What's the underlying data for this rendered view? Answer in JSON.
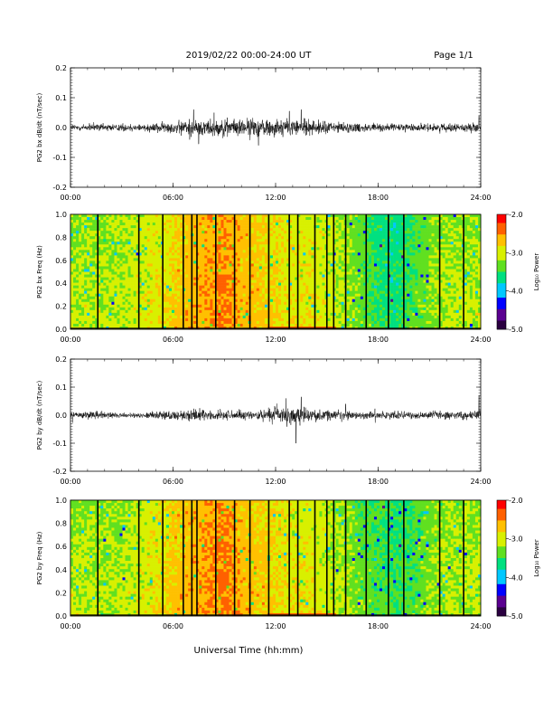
{
  "header": {
    "title": "2019/02/22  00:00-24:00 UT",
    "page": "Page 1/1"
  },
  "footer": {
    "xlabel": "Universal Time (hh:mm)"
  },
  "colors": {
    "trace": "#000000",
    "frame": "#000000",
    "colormap": [
      "#2a0040",
      "#5a0090",
      "#0000ff",
      "#00c8ff",
      "#00e080",
      "#60e020",
      "#d8f000",
      "#ffc000",
      "#ff6000",
      "#ff0000"
    ]
  },
  "chart_data": [
    {
      "type": "line",
      "title": "",
      "ylabel": "PG2 bx dB/dt (nT/sec)",
      "xlim": [
        0,
        24
      ],
      "ylim": [
        -0.2,
        0.2
      ],
      "x_tick_labels": [
        "00:00",
        "06:00",
        "12:00",
        "18:00",
        "24:00"
      ],
      "y_tick_labels": [
        "0.2",
        "0.1",
        "0.0",
        "-0.1",
        "-0.2"
      ],
      "series": [
        {
          "x_hours": [
            0,
            1,
            2,
            3,
            4,
            5,
            6,
            7,
            8,
            9,
            10,
            11,
            12,
            13,
            14,
            15,
            16,
            17,
            18,
            19,
            20,
            21,
            22,
            23,
            24
          ],
          "amplitude": [
            0.02,
            0.02,
            0.02,
            0.02,
            0.02,
            0.025,
            0.03,
            0.045,
            0.045,
            0.04,
            0.045,
            0.05,
            0.045,
            0.045,
            0.04,
            0.035,
            0.025,
            0.025,
            0.02,
            0.02,
            0.02,
            0.02,
            0.02,
            0.02,
            0.02
          ],
          "peaks": [
            [
              7.2,
              0.06
            ],
            [
              7.5,
              -0.055
            ],
            [
              8.4,
              0.05
            ],
            [
              11.0,
              -0.06
            ],
            [
              12.8,
              0.055
            ],
            [
              13.5,
              0.06
            ],
            [
              23.9,
              0.04
            ]
          ]
        }
      ]
    },
    {
      "type": "heatmap",
      "title": "",
      "ylabel": "PG2 bx Freq (Hz)",
      "xlim": [
        0,
        24
      ],
      "ylim": [
        0.0,
        1.0
      ],
      "x_tick_labels": [
        "00:00",
        "06:00",
        "12:00",
        "18:00",
        "24:00"
      ],
      "y_tick_labels": [
        "1.0",
        "0.8",
        "0.6",
        "0.4",
        "0.2",
        "0.0"
      ],
      "colorbar": {
        "label": "Log₁₀ Power",
        "range": [
          -5.0,
          -2.0
        ],
        "tick_labels": [
          "-2.0",
          "-3.0",
          "-4.0",
          "-5.0"
        ]
      },
      "hourly_log_power": [
        -3.1,
        -3.1,
        -3.1,
        -3.1,
        -3.0,
        -2.9,
        -2.8,
        -2.6,
        -2.5,
        -2.4,
        -2.6,
        -2.7,
        -2.8,
        -2.9,
        -2.9,
        -3.0,
        -3.1,
        -3.3,
        -3.5,
        -3.6,
        -3.4,
        -3.2,
        -3.1,
        -3.1,
        -3.1
      ],
      "gap_hours": [
        1.6,
        4.0,
        5.4,
        6.6,
        7.1,
        7.4,
        8.5,
        9.6,
        10.5,
        11.6,
        12.8,
        13.3,
        14.3,
        15.0,
        15.4,
        16.1,
        17.3,
        18.6,
        19.5,
        21.6,
        23.0
      ]
    },
    {
      "type": "line",
      "title": "",
      "ylabel": "PG2 by dB/dt (nT/sec)",
      "xlim": [
        0,
        24
      ],
      "ylim": [
        -0.2,
        0.2
      ],
      "x_tick_labels": [
        "00:00",
        "06:00",
        "12:00",
        "18:00",
        "24:00"
      ],
      "y_tick_labels": [
        "0.2",
        "0.1",
        "0.0",
        "-0.1",
        "-0.2"
      ],
      "series": [
        {
          "x_hours": [
            0,
            1,
            2,
            3,
            4,
            5,
            6,
            7,
            8,
            9,
            10,
            11,
            12,
            13,
            14,
            15,
            16,
            17,
            18,
            19,
            20,
            21,
            22,
            23,
            24
          ],
          "amplitude": [
            0.02,
            0.02,
            0.02,
            0.015,
            0.015,
            0.02,
            0.025,
            0.035,
            0.03,
            0.03,
            0.025,
            0.03,
            0.04,
            0.05,
            0.035,
            0.03,
            0.025,
            0.02,
            0.02,
            0.02,
            0.02,
            0.02,
            0.02,
            0.02,
            0.025
          ],
          "peaks": [
            [
              12.6,
              0.06
            ],
            [
              13.2,
              -0.1
            ],
            [
              13.5,
              0.065
            ],
            [
              16.1,
              0.04
            ],
            [
              23.9,
              0.07
            ]
          ]
        }
      ]
    },
    {
      "type": "heatmap",
      "title": "",
      "ylabel": "PG2 by Freq (Hz)",
      "xlim": [
        0,
        24
      ],
      "ylim": [
        0.0,
        1.0
      ],
      "x_tick_labels": [
        "00:00",
        "06:00",
        "12:00",
        "18:00",
        "24:00"
      ],
      "y_tick_labels": [
        "1.0",
        "0.8",
        "0.6",
        "0.4",
        "0.2",
        "0.0"
      ],
      "colorbar": {
        "label": "Log₁₀ Power",
        "range": [
          -5.0,
          -2.0
        ],
        "tick_labels": [
          "-2.0",
          "-3.0",
          "-4.0",
          "-5.0"
        ]
      },
      "hourly_log_power": [
        -3.1,
        -3.1,
        -3.1,
        -3.1,
        -3.0,
        -2.9,
        -2.7,
        -2.6,
        -2.5,
        -2.4,
        -2.6,
        -2.7,
        -2.8,
        -2.9,
        -2.9,
        -3.0,
        -3.1,
        -3.3,
        -3.4,
        -3.5,
        -3.4,
        -3.2,
        -3.1,
        -3.1,
        -3.1
      ],
      "gap_hours": [
        1.6,
        4.0,
        5.4,
        6.6,
        7.1,
        7.4,
        8.5,
        9.6,
        10.5,
        11.6,
        12.8,
        13.3,
        14.3,
        15.0,
        15.4,
        16.1,
        17.3,
        18.6,
        19.5,
        21.6,
        23.0
      ]
    }
  ]
}
